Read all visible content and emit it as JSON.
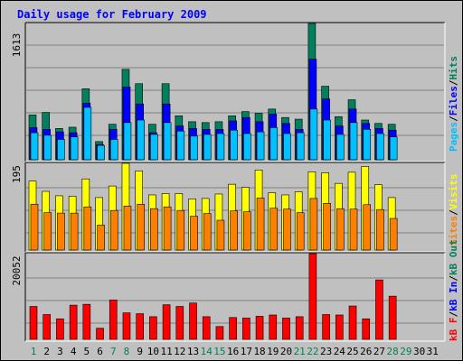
{
  "title": "Daily usage for February 2009",
  "panels": {
    "top": {
      "max_label": "1613",
      "legend": [
        "Pages",
        "/",
        "Files",
        "/",
        "Hits"
      ]
    },
    "middle": {
      "max_label": "195",
      "legend": [
        "Sites",
        "/",
        "Visits"
      ]
    },
    "bottom": {
      "max_label": "20052",
      "legend": [
        "kB F",
        "/",
        "kB In",
        "/",
        "kB Out"
      ]
    }
  },
  "colors": {
    "background": "#c0c0c0",
    "plot": "#c0c0c0",
    "title": "#0000ff",
    "hits": "#00805c",
    "files": "#0000ff",
    "pages": "#00c0ff",
    "visits": "#ffff00",
    "sites": "#ff8000",
    "kbf": "#ff0000",
    "kbin": "#0000ff",
    "kbout": "#00805c",
    "weekday_label": "#000000",
    "weekend_label": "#00805c"
  },
  "chart_data": [
    {
      "type": "bar",
      "title": "Daily usage for February 2009",
      "categories": [
        "1",
        "2",
        "3",
        "4",
        "5",
        "6",
        "7",
        "8",
        "9",
        "10",
        "11",
        "12",
        "13",
        "14",
        "15",
        "16",
        "17",
        "18",
        "19",
        "20",
        "21",
        "22",
        "23",
        "24",
        "25",
        "26",
        "27",
        "28",
        "29",
        "30",
        "31"
      ],
      "weekend_days": [
        "1",
        "7",
        "8",
        "14",
        "15",
        "21",
        "22",
        "28",
        "29"
      ],
      "series": [
        {
          "name": "Hits",
          "values": [
            530,
            560,
            370,
            385,
            840,
            215,
            420,
            1070,
            900,
            420,
            900,
            520,
            450,
            440,
            450,
            520,
            570,
            550,
            600,
            500,
            480,
            1613,
            870,
            510,
            710,
            470,
            430,
            420,
            0,
            0,
            0
          ]
        },
        {
          "name": "Files",
          "values": [
            380,
            360,
            330,
            320,
            670,
            180,
            360,
            860,
            660,
            320,
            660,
            400,
            370,
            360,
            360,
            460,
            500,
            450,
            540,
            430,
            360,
            1190,
            720,
            400,
            600,
            430,
            370,
            350,
            0,
            0,
            0
          ]
        },
        {
          "name": "Pages",
          "values": [
            320,
            290,
            240,
            270,
            620,
            170,
            240,
            440,
            470,
            300,
            440,
            340,
            280,
            300,
            310,
            350,
            310,
            330,
            380,
            310,
            320,
            600,
            470,
            300,
            440,
            360,
            310,
            270,
            0,
            0,
            0
          ]
        }
      ],
      "ylim": [
        0,
        1613
      ]
    },
    {
      "type": "bar",
      "categories": [
        "1",
        "2",
        "3",
        "4",
        "5",
        "6",
        "7",
        "8",
        "9",
        "10",
        "11",
        "12",
        "13",
        "14",
        "15",
        "16",
        "17",
        "18",
        "19",
        "20",
        "21",
        "22",
        "23",
        "24",
        "25",
        "26",
        "27",
        "28",
        "29",
        "30",
        "31"
      ],
      "series": [
        {
          "name": "Visits",
          "values": [
            155,
            132,
            122,
            121,
            160,
            118,
            144,
            195,
            178,
            124,
            127,
            127,
            115,
            116,
            126,
            148,
            141,
            180,
            129,
            124,
            131,
            176,
            174,
            150,
            175,
            188,
            147,
            118,
            0,
            0,
            0
          ]
        },
        {
          "name": "Sites",
          "values": [
            103,
            84,
            83,
            83,
            97,
            56,
            89,
            99,
            103,
            93,
            97,
            89,
            76,
            82,
            67,
            88,
            86,
            117,
            94,
            92,
            84,
            116,
            105,
            93,
            92,
            102,
            91,
            71,
            0,
            0,
            0
          ]
        }
      ],
      "ylim": [
        0,
        195
      ]
    },
    {
      "type": "bar",
      "categories": [
        "1",
        "2",
        "3",
        "4",
        "5",
        "6",
        "7",
        "8",
        "9",
        "10",
        "11",
        "12",
        "13",
        "14",
        "15",
        "16",
        "17",
        "18",
        "19",
        "20",
        "21",
        "22",
        "23",
        "24",
        "25",
        "26",
        "27",
        "28",
        "29",
        "30",
        "31"
      ],
      "series": [
        {
          "name": "kB F",
          "values": [
            7700,
            5800,
            4800,
            8000,
            8200,
            2600,
            9200,
            6200,
            6000,
            5300,
            8100,
            7700,
            8500,
            5300,
            3000,
            5100,
            5000,
            5400,
            5700,
            5000,
            5300,
            20052,
            5800,
            5700,
            7800,
            4800,
            13900,
            10100,
            0,
            0,
            0
          ]
        }
      ],
      "ylim": [
        0,
        20052
      ]
    }
  ]
}
